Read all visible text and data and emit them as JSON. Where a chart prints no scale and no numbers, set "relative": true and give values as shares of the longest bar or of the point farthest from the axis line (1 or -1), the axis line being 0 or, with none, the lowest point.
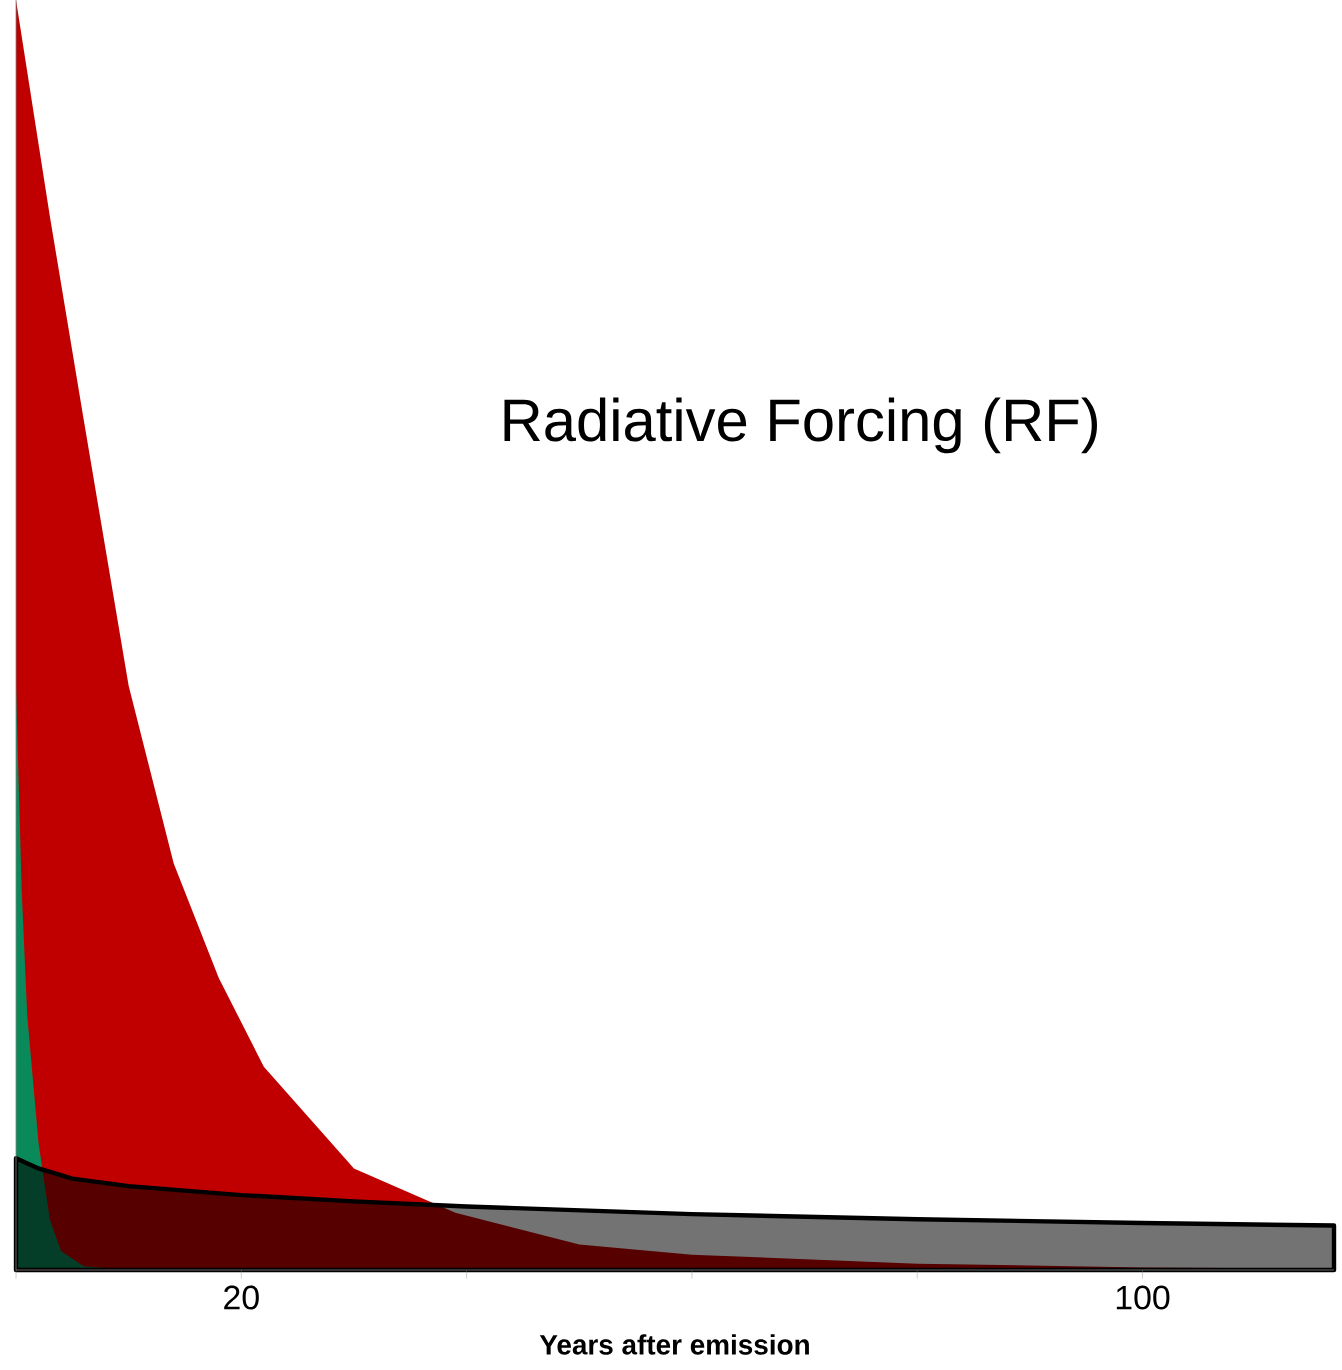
{
  "chart_data": {
    "type": "area",
    "title": "Radiative Forcing (RF)",
    "xlabel": "Years after emission",
    "relative": true,
    "xlim": [
      0,
      117
    ],
    "xticks": [
      {
        "value": 0,
        "label": null
      },
      {
        "value": 20,
        "label": "20"
      },
      {
        "value": 40,
        "label": null
      },
      {
        "value": 60,
        "label": null
      },
      {
        "value": 80,
        "label": null
      },
      {
        "value": 100,
        "label": "100"
      }
    ],
    "series": [
      {
        "color": "#c00000",
        "x": [
          0,
          3,
          6,
          10,
          14,
          18,
          22,
          30,
          39,
          50,
          60,
          80,
          100,
          117
        ],
        "values": [
          1.0,
          0.83,
          0.67,
          0.46,
          0.32,
          0.23,
          0.16,
          0.08,
          0.045,
          0.02,
          0.012,
          0.005,
          0.002,
          0.001
        ]
      },
      {
        "color": "#0a8a5a",
        "x": [
          0,
          0.5,
          1,
          2,
          3,
          4,
          6,
          10,
          117
        ],
        "values": [
          0.46,
          0.3,
          0.2,
          0.1,
          0.04,
          0.015,
          0.003,
          0,
          0
        ]
      },
      {
        "color": "#000000",
        "x": [
          0,
          2,
          5,
          10,
          20,
          30,
          40,
          60,
          80,
          100,
          117
        ],
        "values": [
          0.088,
          0.08,
          0.072,
          0.066,
          0.059,
          0.054,
          0.05,
          0.044,
          0.04,
          0.037,
          0.035
        ]
      }
    ]
  }
}
